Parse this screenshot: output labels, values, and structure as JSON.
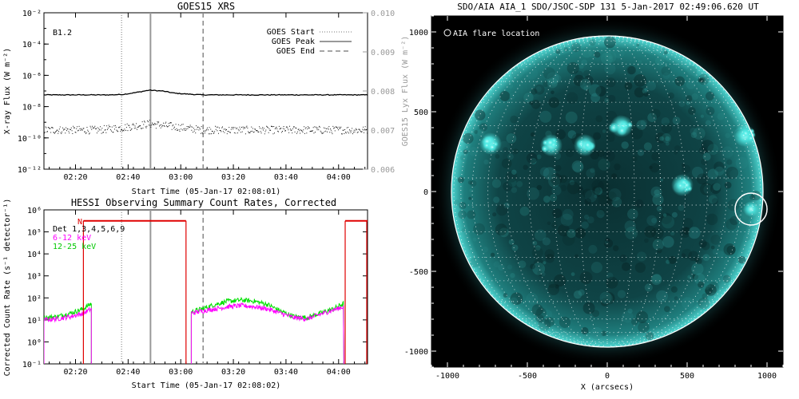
{
  "chart_data": [
    {
      "type": "line",
      "title": "GOES15 XRS",
      "xlabel": "Start Time (05-Jan-17 02:08:01)",
      "ylabel": "X-ray Flux (W m⁻²)",
      "y2label": "GOES15 Lyx Flux (W m⁻²)",
      "yscale": "log",
      "ylim": [
        1e-12,
        0.01
      ],
      "y2lim": [
        0.006,
        0.01
      ],
      "xlim_minutes": [
        0,
        123
      ],
      "x_ticks_minutes": [
        12,
        32,
        52,
        72,
        92,
        112
      ],
      "x_tick_labels": [
        "02:20",
        "02:40",
        "03:00",
        "03:20",
        "03:40",
        "04:00"
      ],
      "y_tick_labels": [
        "10⁻¹²",
        "10⁻¹⁰",
        "10⁻⁸",
        "10⁻⁶",
        "10⁻⁴",
        "10⁻²"
      ],
      "y2_tick_labels": [
        "0.006",
        "0.007",
        "0.008",
        "0.009",
        "0.010"
      ],
      "annotation": "B1.2",
      "legend": [
        "GOES Start",
        "GOES Peak",
        "GOES End"
      ],
      "markers_minutes": {
        "start": 29.5,
        "peak": 40.5,
        "end": 60.5
      },
      "series": [
        {
          "name": "Long channel (1-8 Å)",
          "color": "#000000",
          "x": [
            0,
            10,
            20,
            25,
            30,
            35,
            40,
            45,
            50,
            60,
            80,
            100,
            123
          ],
          "log10_flux": [
            -7.25,
            -7.25,
            -7.25,
            -7.25,
            -7.22,
            -7.1,
            -6.95,
            -7.0,
            -7.15,
            -7.25,
            -7.25,
            -7.25,
            -7.25
          ]
        },
        {
          "name": "Short channel (0.5-4 Å)",
          "color": "#000000",
          "style": "dotted",
          "x": [
            0,
            20,
            30,
            40,
            50,
            60,
            123
          ],
          "log10_flux": [
            -9.5,
            -9.5,
            -9.35,
            -9.1,
            -9.3,
            -9.5,
            -9.5
          ]
        }
      ]
    },
    {
      "type": "line",
      "title": "HESSI Observing Summary Count Rates, Corrected",
      "xlabel": "Start Time (05-Jan-17 02:08:02)",
      "ylabel": "Corrected Count Rate (s⁻¹ detector⁻¹)",
      "yscale": "log",
      "ylim": [
        0.1,
        1000000
      ],
      "xlim_minutes": [
        0,
        123
      ],
      "x_ticks_minutes": [
        12,
        32,
        52,
        72,
        92,
        112
      ],
      "x_tick_labels": [
        "02:20",
        "02:40",
        "03:00",
        "03:20",
        "03:40",
        "04:00"
      ],
      "y_tick_labels": [
        "10⁻¹",
        "10⁰",
        "10¹",
        "10²",
        "10³",
        "10⁴",
        "10⁵",
        "10⁶"
      ],
      "detectors_label": "Det 1,3,4,5,6,9",
      "night_label": "N",
      "night_intervals_minutes": [
        [
          15,
          54
        ],
        [
          114.5,
          123
        ]
      ],
      "markers_minutes": {
        "start": 29.5,
        "peak": 40.5,
        "end": 60.5
      },
      "series": [
        {
          "name": "6-12 keV",
          "color": "#ff00ff",
          "x": [
            0,
            5,
            10,
            15,
            18,
            56,
            60,
            65,
            70,
            75,
            80,
            85,
            90,
            95,
            100,
            105,
            110,
            114
          ],
          "log10_rate": [
            1.0,
            1.05,
            1.15,
            1.3,
            1.5,
            1.3,
            1.4,
            1.5,
            1.6,
            1.65,
            1.6,
            1.5,
            1.3,
            1.1,
            1.05,
            1.25,
            1.45,
            1.6
          ]
        },
        {
          "name": "12-25 keV",
          "color": "#00e000",
          "x": [
            0,
            5,
            10,
            15,
            18,
            56,
            60,
            65,
            70,
            75,
            80,
            85,
            90,
            95,
            100,
            105,
            110,
            114
          ],
          "log10_rate": [
            1.1,
            1.15,
            1.3,
            1.5,
            1.75,
            1.35,
            1.5,
            1.7,
            1.85,
            1.9,
            1.85,
            1.7,
            1.4,
            1.15,
            1.1,
            1.3,
            1.5,
            1.75
          ]
        }
      ]
    },
    {
      "type": "heatmap",
      "title": "SDO/AIA AIA_1 SDO/JSOC-SDP 131  5-Jan-2017 02:49:06.620 UT",
      "xlabel": "X (arcsecs)",
      "ylabel": "",
      "xlim": [
        -1100,
        1100
      ],
      "ylim": [
        -1100,
        1100
      ],
      "x_tick_labels": [
        "-1000",
        "-500",
        "0",
        "500",
        "1000"
      ],
      "y_tick_labels": [
        "-1000",
        "-500",
        "0",
        "500",
        "1000"
      ],
      "x_tick_values": [
        -1000,
        -500,
        0,
        500,
        1000
      ],
      "y_tick_values": [
        -1000,
        -500,
        0,
        500,
        1000
      ],
      "solar_radius_arcsec": 975,
      "flare_location_arcsec": [
        900,
        -110
      ],
      "flare_circle_radius_arcsec": 100,
      "legend_text": "AIA flare location",
      "bright_regions_arcsec": [
        [
          -730,
          300
        ],
        [
          -140,
          290
        ],
        [
          -350,
          290
        ],
        [
          90,
          410
        ],
        [
          470,
          40
        ],
        [
          860,
          350
        ]
      ],
      "colors": {
        "disk": "#0c3a3a",
        "bright": "#50ece6",
        "limb": "#ffffff"
      }
    }
  ]
}
